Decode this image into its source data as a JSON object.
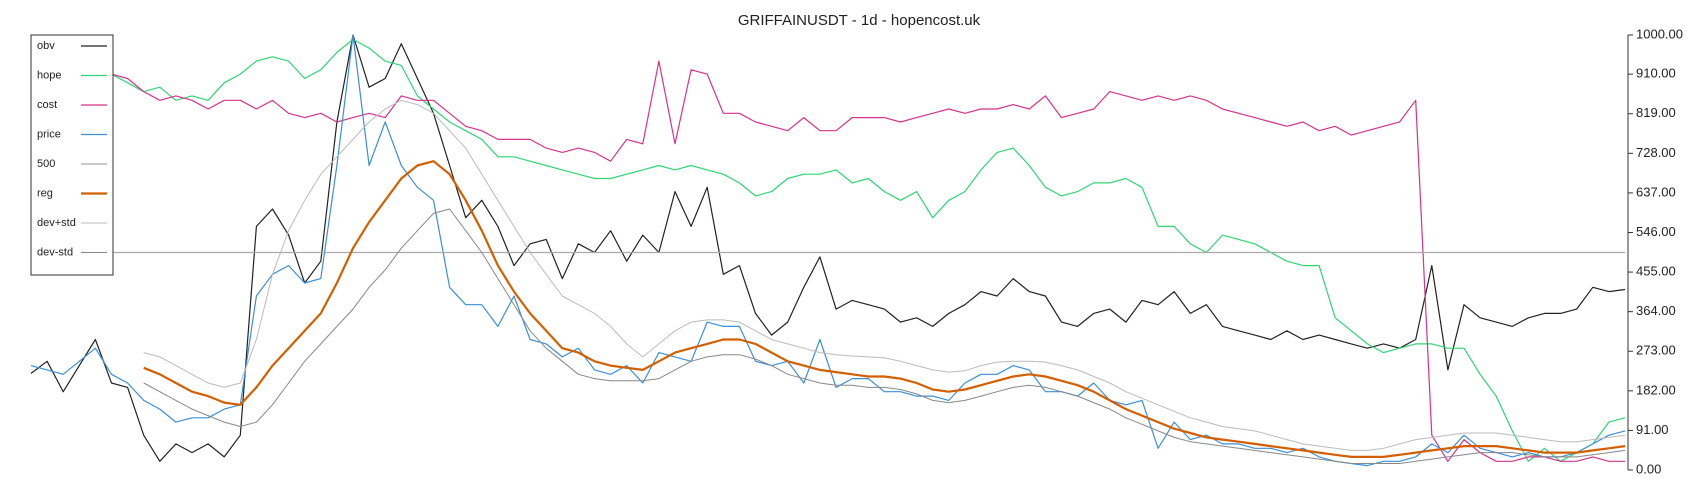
{
  "chart_data": {
    "type": "line",
    "title": "GRIFFAINUSDT - 1d - hopencost.uk",
    "ylim": [
      0,
      1000
    ],
    "yticks": [
      {
        "value": 0,
        "label": "0.00"
      },
      {
        "value": 91,
        "label": "91.00"
      },
      {
        "value": 182,
        "label": "182.00"
      },
      {
        "value": 273,
        "label": "273.00"
      },
      {
        "value": 364,
        "label": "364.00"
      },
      {
        "value": 455,
        "label": "455.00"
      },
      {
        "value": 546,
        "label": "546.00"
      },
      {
        "value": 637,
        "label": "637.00"
      },
      {
        "value": 728,
        "label": "728.00"
      },
      {
        "value": 819,
        "label": "819.00"
      },
      {
        "value": 910,
        "label": "910.00"
      },
      {
        "value": 1000,
        "label": "1000.00"
      }
    ],
    "legend": "upper left",
    "series": [
      {
        "name": "obv",
        "color": "#222222",
        "width": 1.2,
        "values": [
          222,
          250,
          180,
          240,
          300,
          200,
          190,
          80,
          20,
          60,
          40,
          60,
          30,
          80,
          560,
          600,
          540,
          430,
          480,
          800,
          1000,
          880,
          900,
          980,
          900,
          820,
          700,
          580,
          620,
          560,
          470,
          520,
          530,
          440,
          520,
          500,
          550,
          480,
          540,
          500,
          640,
          560,
          650,
          450,
          470,
          360,
          310,
          340,
          420,
          490,
          370,
          390,
          380,
          370,
          340,
          350,
          330,
          360,
          380,
          410,
          400,
          440,
          410,
          400,
          340,
          330,
          360,
          370,
          340,
          390,
          380,
          410,
          360,
          380,
          330,
          320,
          310,
          300,
          320,
          300,
          310,
          300,
          290,
          280,
          290,
          280,
          300,
          470,
          230,
          380,
          350,
          340,
          330,
          350,
          360,
          360,
          370,
          420,
          410,
          415
        ]
      },
      {
        "name": "hope",
        "color": "#2ed573",
        "width": 1.2,
        "values": [
          null,
          null,
          null,
          null,
          null,
          910,
          890,
          870,
          880,
          850,
          860,
          850,
          890,
          910,
          940,
          950,
          940,
          900,
          920,
          960,
          990,
          970,
          940,
          930,
          860,
          830,
          800,
          780,
          760,
          720,
          720,
          710,
          700,
          690,
          680,
          670,
          670,
          680,
          690,
          700,
          690,
          700,
          690,
          680,
          660,
          630,
          640,
          670,
          680,
          680,
          690,
          660,
          670,
          640,
          620,
          640,
          580,
          620,
          640,
          690,
          730,
          740,
          700,
          650,
          630,
          640,
          660,
          660,
          670,
          650,
          560,
          560,
          520,
          500,
          540,
          530,
          520,
          500,
          480,
          470,
          470,
          350,
          320,
          290,
          270,
          280,
          290,
          290,
          280,
          280,
          220,
          170,
          90,
          20,
          50,
          20,
          40,
          60,
          110,
          120
        ]
      },
      {
        "name": "cost",
        "color": "#d6338a",
        "width": 1.2,
        "values": [
          null,
          null,
          null,
          null,
          null,
          910,
          900,
          870,
          850,
          860,
          850,
          830,
          850,
          850,
          830,
          850,
          820,
          810,
          820,
          800,
          810,
          820,
          810,
          860,
          850,
          850,
          820,
          790,
          780,
          760,
          760,
          760,
          740,
          730,
          740,
          730,
          710,
          760,
          750,
          940,
          750,
          920,
          910,
          820,
          820,
          800,
          790,
          780,
          810,
          780,
          780,
          810,
          810,
          810,
          800,
          810,
          820,
          830,
          820,
          830,
          830,
          840,
          830,
          860,
          810,
          820,
          830,
          870,
          860,
          850,
          860,
          850,
          860,
          850,
          830,
          820,
          810,
          800,
          790,
          800,
          780,
          790,
          770,
          780,
          790,
          800,
          850,
          80,
          20,
          70,
          40,
          20,
          20,
          30,
          30,
          20,
          20,
          30,
          20,
          20
        ]
      },
      {
        "name": "price",
        "color": "#3a8fd9",
        "width": 1.2,
        "values": [
          240,
          230,
          220,
          250,
          280,
          220,
          200,
          160,
          140,
          110,
          120,
          120,
          140,
          150,
          400,
          450,
          470,
          430,
          440,
          700,
          1000,
          700,
          800,
          700,
          650,
          620,
          420,
          380,
          380,
          330,
          400,
          300,
          290,
          260,
          280,
          230,
          220,
          240,
          200,
          270,
          260,
          250,
          340,
          330,
          330,
          250,
          240,
          250,
          200,
          300,
          190,
          210,
          210,
          180,
          180,
          170,
          170,
          160,
          200,
          220,
          220,
          240,
          230,
          180,
          180,
          170,
          200,
          160,
          150,
          160,
          50,
          110,
          70,
          80,
          60,
          60,
          50,
          50,
          40,
          50,
          30,
          20,
          15,
          10,
          20,
          20,
          30,
          60,
          40,
          80,
          50,
          40,
          30,
          40,
          30,
          30,
          40,
          60,
          80,
          90
        ]
      },
      {
        "name": "500",
        "color": "#aaaaaa",
        "width": 1.2,
        "values": [
          500,
          500,
          500,
          500,
          500,
          500,
          500,
          500,
          500,
          500,
          500,
          500,
          500,
          500,
          500,
          500,
          500,
          500,
          500,
          500,
          500,
          500,
          500,
          500,
          500,
          500,
          500,
          500,
          500,
          500,
          500,
          500,
          500,
          500,
          500,
          500,
          500,
          500,
          500,
          500,
          500,
          500,
          500,
          500,
          500,
          500,
          500,
          500,
          500,
          500,
          500,
          500,
          500,
          500,
          500,
          500,
          500,
          500,
          500,
          500,
          500,
          500,
          500,
          500,
          500,
          500,
          500,
          500,
          500,
          500,
          500,
          500,
          500,
          500,
          500,
          500,
          500,
          500,
          500,
          500,
          500,
          500,
          500,
          500,
          500,
          500,
          500,
          500,
          500,
          500,
          500,
          500,
          500,
          500,
          500,
          500,
          500,
          500,
          500,
          500
        ]
      },
      {
        "name": "reg",
        "color": "#d35f00",
        "width": 2.2,
        "values": [
          null,
          null,
          null,
          null,
          null,
          null,
          null,
          235,
          220,
          200,
          180,
          170,
          155,
          150,
          190,
          240,
          280,
          320,
          360,
          430,
          510,
          570,
          620,
          670,
          700,
          710,
          680,
          620,
          550,
          470,
          410,
          360,
          320,
          280,
          270,
          250,
          240,
          235,
          230,
          250,
          270,
          280,
          290,
          300,
          300,
          290,
          270,
          250,
          240,
          230,
          225,
          220,
          215,
          215,
          210,
          200,
          185,
          180,
          185,
          195,
          205,
          215,
          220,
          215,
          205,
          195,
          180,
          160,
          140,
          125,
          110,
          95,
          85,
          75,
          70,
          65,
          60,
          55,
          50,
          45,
          40,
          35,
          30,
          30,
          30,
          35,
          40,
          45,
          50,
          55,
          55,
          55,
          50,
          45,
          40,
          40,
          40,
          45,
          50,
          55
        ]
      },
      {
        "name": "dev+std",
        "color": "#bbbbbb",
        "width": 1,
        "values": [
          null,
          null,
          null,
          null,
          null,
          null,
          null,
          270,
          260,
          240,
          220,
          200,
          190,
          200,
          300,
          450,
          550,
          620,
          680,
          720,
          760,
          800,
          830,
          850,
          840,
          820,
          780,
          740,
          680,
          620,
          560,
          500,
          450,
          400,
          380,
          360,
          330,
          290,
          260,
          290,
          320,
          340,
          345,
          345,
          340,
          320,
          300,
          290,
          280,
          270,
          265,
          262,
          260,
          258,
          250,
          240,
          230,
          225,
          228,
          240,
          248,
          250,
          250,
          248,
          240,
          230,
          215,
          200,
          180,
          165,
          150,
          135,
          120,
          110,
          100,
          95,
          90,
          80,
          70,
          60,
          55,
          50,
          45,
          45,
          50,
          60,
          70,
          75,
          80,
          85,
          85,
          85,
          80,
          75,
          70,
          65,
          65,
          70,
          75,
          80
        ]
      },
      {
        "name": "dev-std",
        "color": "#888888",
        "width": 1,
        "values": [
          null,
          null,
          null,
          null,
          null,
          null,
          null,
          200,
          180,
          160,
          140,
          125,
          110,
          100,
          110,
          150,
          200,
          250,
          290,
          330,
          370,
          420,
          460,
          510,
          550,
          590,
          600,
          550,
          500,
          440,
          380,
          320,
          280,
          250,
          220,
          210,
          205,
          205,
          205,
          210,
          230,
          250,
          260,
          265,
          265,
          255,
          240,
          220,
          210,
          200,
          195,
          195,
          190,
          190,
          185,
          175,
          160,
          155,
          160,
          170,
          180,
          190,
          195,
          190,
          180,
          170,
          155,
          140,
          120,
          105,
          90,
          75,
          65,
          60,
          55,
          50,
          45,
          40,
          35,
          30,
          25,
          20,
          15,
          15,
          15,
          15,
          20,
          25,
          30,
          35,
          40,
          40,
          40,
          35,
          30,
          30,
          30,
          35,
          40,
          45
        ]
      }
    ]
  }
}
